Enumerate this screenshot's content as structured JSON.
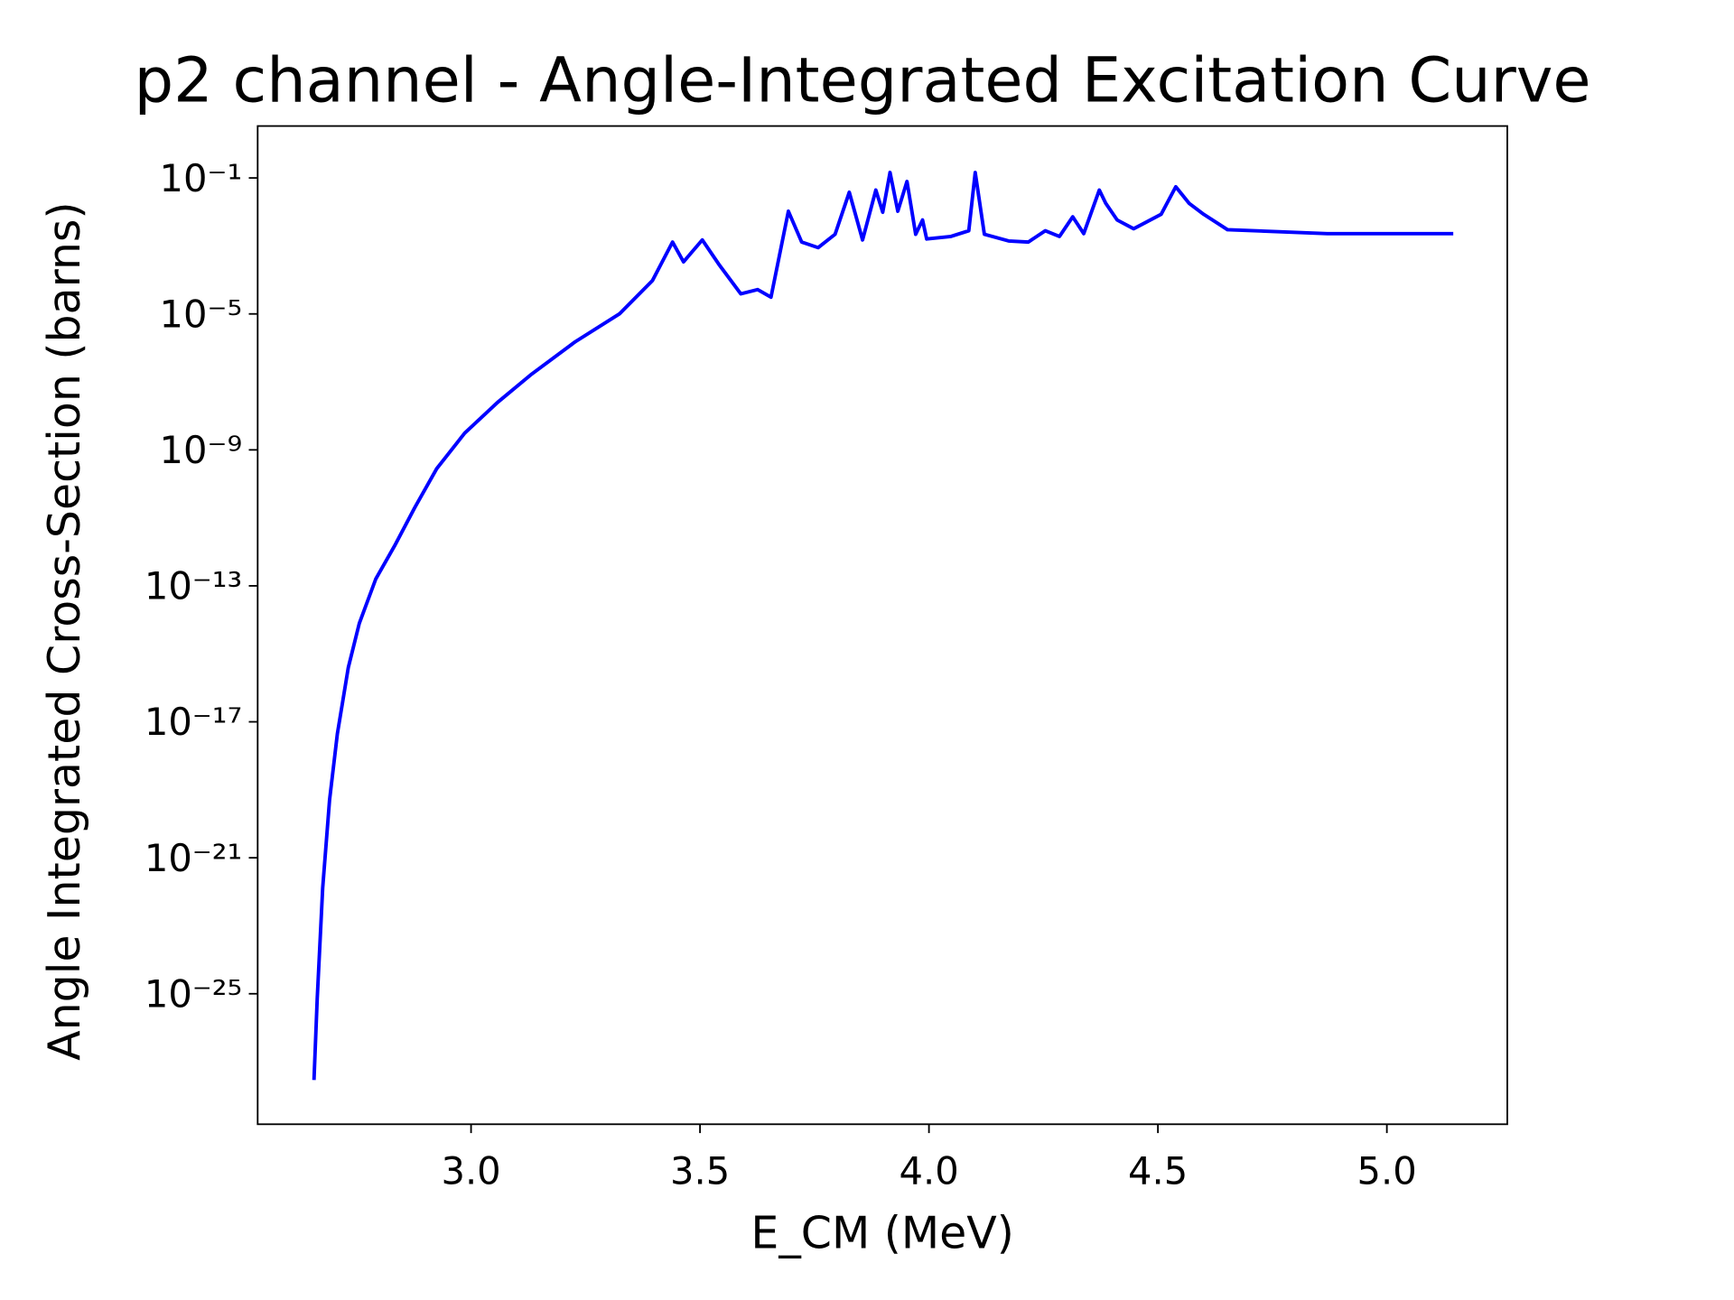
{
  "chart_data": {
    "type": "line",
    "title": "p2 channel - Angle-Integrated Excitation Curve",
    "x_label": "E_CM (MeV)",
    "y_label": "Angle Integrated Cross-Section (barns)",
    "yscale": "log",
    "xlim": [
      2.534,
      5.263
    ],
    "ylim": [
      1.45e-29,
      3.37
    ],
    "xticks": [
      {
        "value": 3,
        "label": "3.0"
      },
      {
        "value": 3.5,
        "label": "3.5"
      },
      {
        "value": 4,
        "label": "4.0"
      },
      {
        "value": 4.5,
        "label": "4.5"
      },
      {
        "value": 5,
        "label": "5.0"
      }
    ],
    "yticks": [
      {
        "value": 0.1,
        "label": "10⁻¹"
      },
      {
        "value": 1e-05,
        "label": "10⁻⁵"
      },
      {
        "value": 1e-09,
        "label": "10⁻⁹"
      },
      {
        "value": 1e-13,
        "label": "10⁻¹³"
      },
      {
        "value": 1e-17,
        "label": "10⁻¹⁷"
      },
      {
        "value": 1e-21,
        "label": "10⁻²¹"
      },
      {
        "value": 1e-25,
        "label": "10⁻²⁵"
      }
    ],
    "x": [
      2.657,
      2.664,
      2.676,
      2.691,
      2.708,
      2.732,
      2.756,
      2.792,
      2.833,
      2.877,
      2.925,
      2.986,
      3.058,
      3.13,
      3.227,
      3.324,
      3.396,
      3.44,
      3.464,
      3.505,
      3.541,
      3.589,
      3.626,
      3.655,
      3.693,
      3.722,
      3.758,
      3.795,
      3.826,
      3.855,
      3.884,
      3.899,
      3.915,
      3.932,
      3.952,
      3.971,
      3.986,
      3.995,
      4.048,
      4.087,
      4.101,
      4.121,
      4.174,
      4.217,
      4.254,
      4.285,
      4.314,
      4.338,
      4.372,
      4.386,
      4.411,
      4.447,
      4.507,
      4.539,
      4.568,
      4.6,
      4.652,
      4.87,
      5.145
    ],
    "series": [
      {
        "name": "p2",
        "color": "#0000ff",
        "values": [
          2.9e-28,
          6.9e-26,
          1.3e-22,
          5e-20,
          4.4e-18,
          4e-16,
          7.9e-15,
          1.6e-13,
          1.5e-12,
          2e-11,
          2.8e-10,
          3.1e-09,
          2.5e-08,
          1.6e-07,
          1.5e-06,
          1e-05,
          9.5e-05,
          0.0013,
          0.00034,
          0.0015,
          0.00029,
          3.9e-05,
          5.2e-05,
          3.1e-05,
          0.0105,
          0.0013,
          0.00089,
          0.0022,
          0.038,
          0.0015,
          0.044,
          0.0098,
          0.145,
          0.0105,
          0.079,
          0.0022,
          0.0058,
          0.0016,
          0.0019,
          0.0028,
          0.145,
          0.0022,
          0.0014,
          0.0013,
          0.0028,
          0.0019,
          0.0072,
          0.0023,
          0.044,
          0.018,
          0.0058,
          0.0032,
          0.0085,
          0.055,
          0.018,
          0.0085,
          0.003,
          0.0023,
          0.0023
        ]
      }
    ]
  }
}
